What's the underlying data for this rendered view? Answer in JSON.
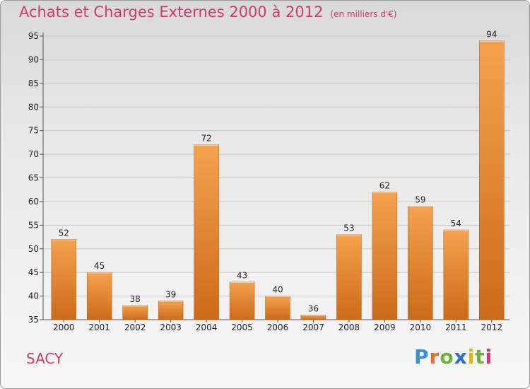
{
  "chart_data": {
    "type": "bar",
    "title": "Achats et Charges Externes 2000 à 2012",
    "unit": "(en milliers d'€)",
    "categories": [
      "2000",
      "2001",
      "2002",
      "2003",
      "2004",
      "2005",
      "2006",
      "2007",
      "2008",
      "2009",
      "2010",
      "2011",
      "2012"
    ],
    "values": [
      52,
      45,
      38,
      39,
      72,
      43,
      40,
      36,
      53,
      62,
      59,
      54,
      94
    ],
    "ylim": [
      35,
      95
    ],
    "yticks": [
      35,
      40,
      45,
      50,
      55,
      60,
      65,
      70,
      75,
      80,
      85,
      90,
      95
    ],
    "xlabel": "",
    "ylabel": "",
    "grid": true,
    "bar_color": "#e8822b"
  },
  "place": "SACY",
  "logo": {
    "text": "Proxiti",
    "colors": [
      "#3a8fd0",
      "#e66b2e",
      "#6fb23a",
      "#2f6fc4",
      "#e6b400",
      "#6fb23a",
      "#e03070"
    ]
  }
}
